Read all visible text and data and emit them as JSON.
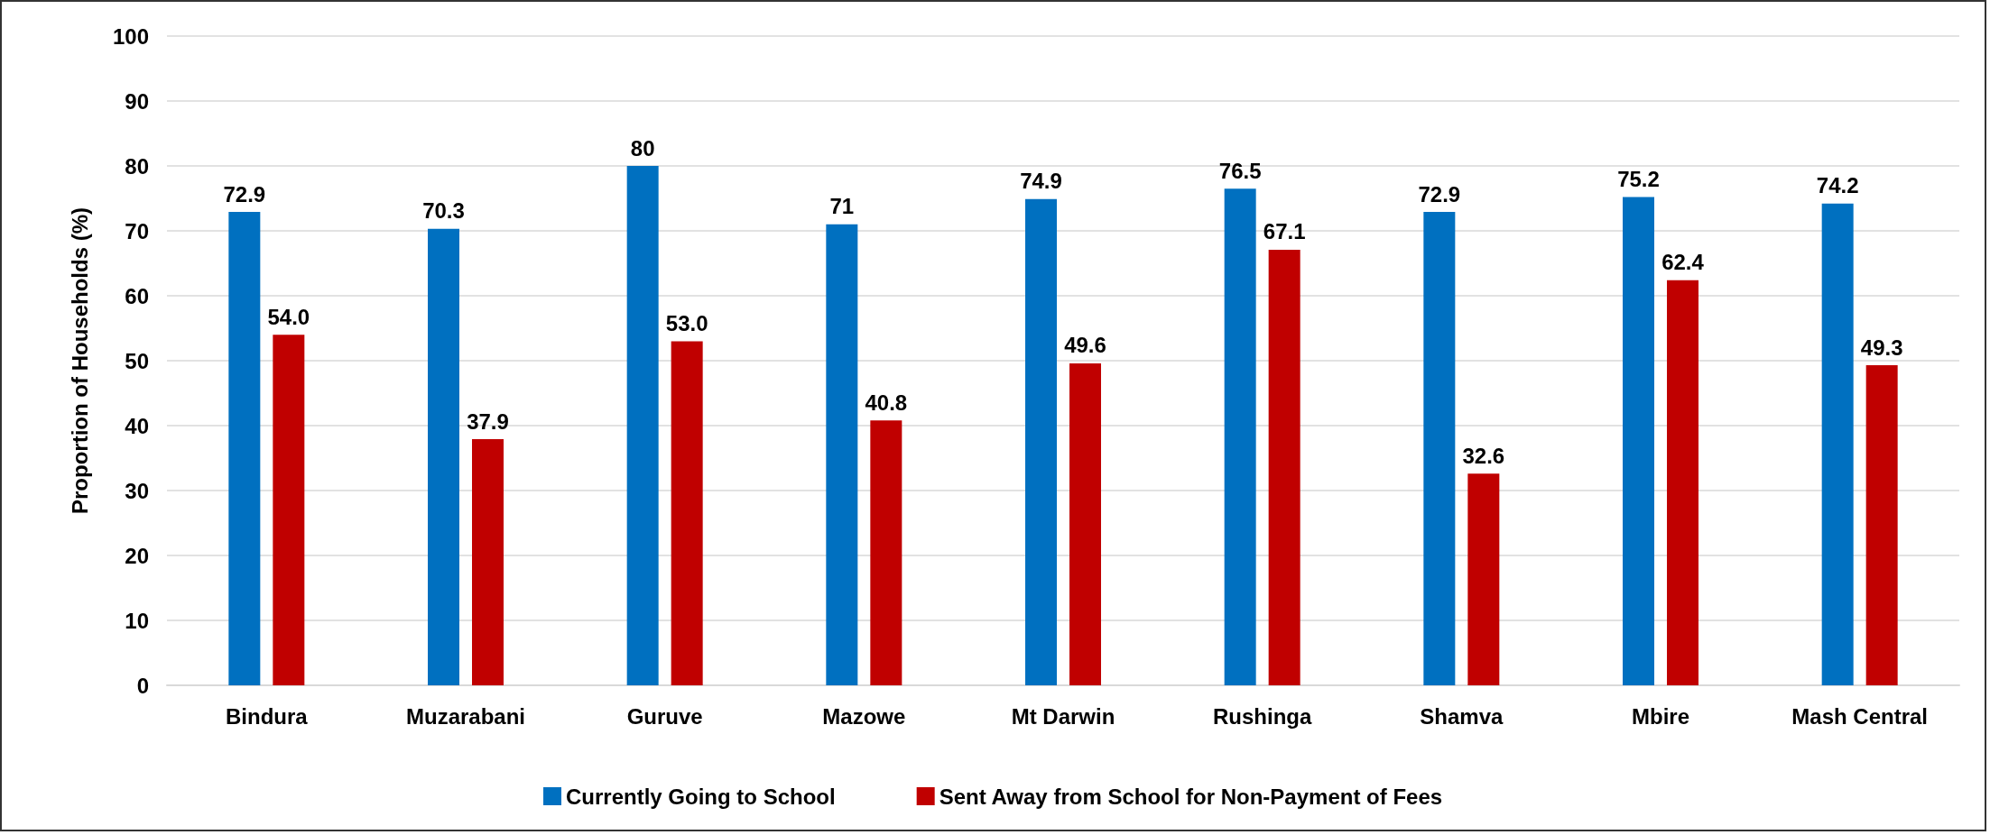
{
  "chart_data": {
    "type": "bar",
    "ylabel": "Proportion of Households (%)",
    "categories": [
      "Bindura",
      "Muzarabani",
      "Guruve",
      "Mazowe",
      "Mt Darwin",
      "Rushinga",
      "Shamva",
      "Mbire",
      "Mash Central"
    ],
    "series": [
      {
        "name": "Currently Going to School",
        "color": "#0070c0",
        "values": [
          72.9,
          70.3,
          80,
          71,
          74.9,
          76.5,
          72.9,
          75.2,
          74.2
        ],
        "value_labels": [
          "72.9",
          "70.3",
          "80",
          "71",
          "74.9",
          "76.5",
          "72.9",
          "75.2",
          "74.2"
        ]
      },
      {
        "name": "Sent Away from School for Non-Payment of Fees",
        "color": "#c00000",
        "values": [
          54.0,
          37.9,
          53.0,
          40.8,
          49.6,
          67.1,
          32.6,
          62.4,
          49.3
        ],
        "value_labels": [
          "54.0",
          "37.9",
          "53.0",
          "40.8",
          "49.6",
          "67.1",
          "32.6",
          "62.4",
          "49.3"
        ]
      }
    ],
    "ylim": [
      0,
      100
    ],
    "yticks": [
      0,
      10,
      20,
      30,
      40,
      50,
      60,
      70,
      80,
      90,
      100
    ],
    "grid": "y",
    "legend": "bottom"
  }
}
